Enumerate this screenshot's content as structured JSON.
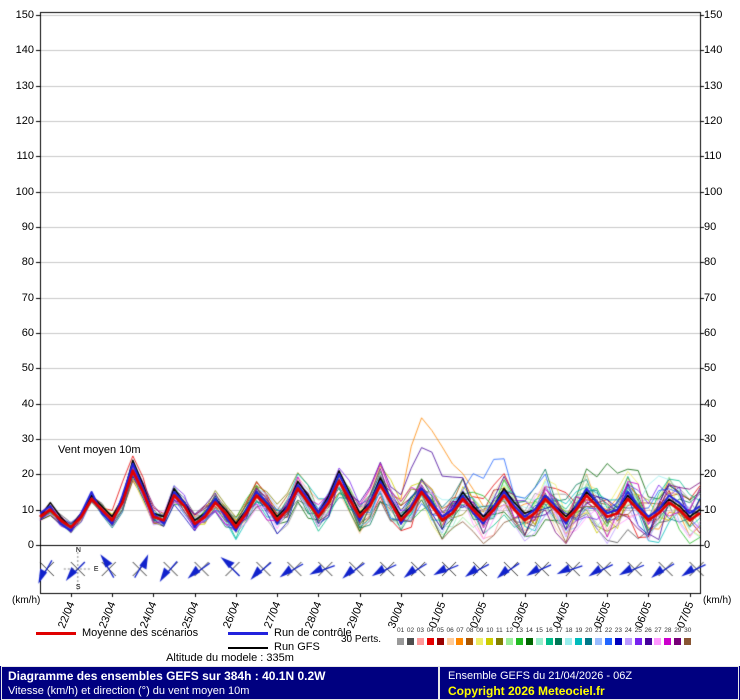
{
  "chart": {
    "annotation": "Vent moyen 10m",
    "unit_left": "(km/h)",
    "unit_right": "(km/h)",
    "y_ticks": [
      0,
      10,
      20,
      30,
      40,
      50,
      60,
      70,
      80,
      90,
      100,
      110,
      120,
      130,
      140,
      150
    ],
    "compass": {
      "n": "N",
      "e": "E",
      "s": "S"
    }
  },
  "chart_data": {
    "type": "line",
    "title": "Diagramme des ensembles GEFS sur 384h : 40.1N 0.2W",
    "ylabel": "Vitesse (km/h) du vent moyen 10m",
    "ylim": [
      0,
      150
    ],
    "x_start": "21/04/2026 06Z",
    "x_step_hours": 6,
    "x_total_hours": 384,
    "date_labels": [
      "22/04",
      "23/04",
      "24/04",
      "25/04",
      "26/04",
      "27/04",
      "28/04",
      "29/04",
      "30/04",
      "01/05",
      "02/05",
      "03/05",
      "04/05",
      "05/05",
      "06/05",
      "07/05"
    ],
    "series": [
      {
        "name": "Moyenne des scénarios",
        "color": "#e00000",
        "width": 2.8,
        "values": [
          8,
          10,
          7,
          5,
          8,
          13,
          10,
          7,
          12,
          21,
          15,
          8,
          7,
          14,
          11,
          6,
          8,
          12,
          9,
          5,
          9,
          14,
          11,
          7,
          10,
          16,
          12,
          8,
          12,
          18,
          13,
          8,
          11,
          17,
          12,
          7,
          10,
          15,
          11,
          7,
          9,
          13,
          10,
          7,
          10,
          14,
          10,
          7,
          9,
          13,
          10,
          7,
          10,
          14,
          11,
          8,
          9,
          13,
          10,
          7,
          9,
          12,
          10,
          7,
          9
        ]
      },
      {
        "name": "Run de contrôle",
        "color": "#2222dd",
        "width": 2,
        "values": [
          9,
          11,
          6,
          4,
          9,
          15,
          9,
          6,
          14,
          23,
          16,
          9,
          6,
          15,
          12,
          5,
          9,
          13,
          8,
          4,
          10,
          15,
          12,
          6,
          11,
          17,
          13,
          9,
          13,
          20,
          14,
          7,
          12,
          18,
          13,
          6,
          11,
          16,
          12,
          8,
          10,
          14,
          9,
          6,
          11,
          15,
          11,
          8,
          10,
          14,
          11,
          6,
          11,
          16,
          12,
          9,
          10,
          15,
          11,
          8,
          10,
          14,
          12,
          9,
          11
        ]
      },
      {
        "name": "Run GFS",
        "color": "#000000",
        "width": 1.5,
        "values": [
          8,
          12,
          8,
          5,
          9,
          14,
          11,
          8,
          13,
          24,
          17,
          9,
          8,
          16,
          12,
          7,
          9,
          13,
          10,
          6,
          10,
          15,
          12,
          8,
          11,
          18,
          14,
          9,
          14,
          21,
          15,
          9,
          12,
          19,
          13,
          8,
          11,
          16,
          12,
          8,
          10,
          15,
          11,
          8,
          11,
          16,
          12,
          9,
          10,
          14,
          11,
          8,
          11,
          15,
          12,
          9,
          10,
          14,
          11,
          8,
          10,
          13,
          11,
          8,
          10
        ]
      }
    ],
    "ensemble": {
      "count": 30,
      "label": "30 Perts.",
      "member_labels": [
        "01",
        "02",
        "03",
        "04",
        "05",
        "06",
        "07",
        "08",
        "09",
        "10",
        "11",
        "12",
        "13",
        "14",
        "15",
        "16",
        "17",
        "18",
        "19",
        "20",
        "21",
        "22",
        "23",
        "24",
        "25",
        "26",
        "27",
        "28",
        "29",
        "30"
      ],
      "colors": [
        "#999999",
        "#4d4d4d",
        "#ff9999",
        "#e60000",
        "#990000",
        "#ffcc99",
        "#ff8800",
        "#aa5500",
        "#eeee66",
        "#cccc00",
        "#808000",
        "#99ee99",
        "#22bb22",
        "#006600",
        "#99eecc",
        "#00bb88",
        "#007755",
        "#99eeee",
        "#00bbbb",
        "#007788",
        "#99bbff",
        "#2266ff",
        "#0000bb",
        "#bb99ff",
        "#7722ee",
        "#440099",
        "#ff99ff",
        "#cc00cc",
        "#770077",
        "#885533"
      ]
    },
    "wind_barbs": {
      "color": "#1122cc",
      "times_h": [
        4,
        22,
        40,
        58,
        76,
        94,
        112,
        130,
        148,
        166,
        184,
        202,
        220,
        238,
        256,
        274,
        292,
        310,
        328,
        346,
        364,
        382
      ],
      "angles_deg": [
        210,
        225,
        330,
        30,
        220,
        235,
        315,
        230,
        240,
        250,
        235,
        245,
        238,
        248,
        242,
        236,
        246,
        252,
        244,
        248,
        238,
        244
      ]
    },
    "grid": true,
    "legend_position": "bottom"
  },
  "legend": {
    "mean_label": "Moyenne des scénarios",
    "control_label": "Run de contrôle",
    "gfs_label": "Run GFS",
    "perts_label": "30 Perts."
  },
  "footer": {
    "altitude": "Altitude du modele : 335m",
    "title": "Diagramme des ensembles GEFS sur 384h : 40.1N 0.2W",
    "subtitle": "Vitesse (km/h) et direction (°) du vent moyen 10m",
    "run_info": "Ensemble GEFS du 21/04/2026 - 06Z",
    "copyright": "Copyright 2026 Meteociel.fr"
  }
}
